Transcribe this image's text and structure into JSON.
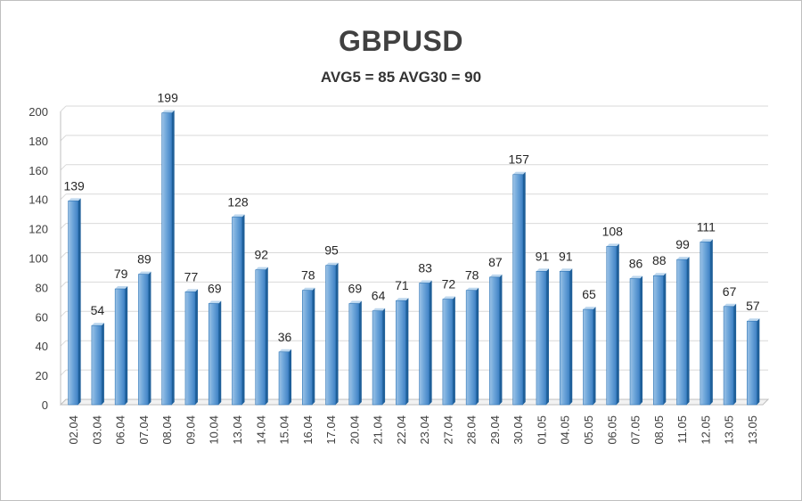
{
  "chart_data": {
    "type": "bar",
    "title": "GBPUSD",
    "subtitle": "AVG5 = 85 AVG30 = 90",
    "xlabel": "",
    "ylabel": "",
    "ylim": [
      0,
      200
    ],
    "yticks": [
      0,
      20,
      40,
      60,
      80,
      100,
      120,
      140,
      160,
      180,
      200
    ],
    "grid": true,
    "legend": "none",
    "categories": [
      "02.04",
      "03.04",
      "06.04",
      "07.04",
      "08.04",
      "09.04",
      "10.04",
      "13.04",
      "14.04",
      "15.04",
      "16.04",
      "17.04",
      "20.04",
      "21.04",
      "22.04",
      "23.04",
      "27.04",
      "28.04",
      "29.04",
      "30.04",
      "01.05",
      "04.05",
      "05.05",
      "06.05",
      "07.05",
      "08.05",
      "11.05",
      "12.05",
      "13.05",
      "13.05"
    ],
    "values": [
      139,
      54,
      79,
      89,
      199,
      77,
      69,
      128,
      92,
      36,
      78,
      95,
      69,
      64,
      71,
      83,
      72,
      78,
      87,
      157,
      91,
      91,
      65,
      108,
      86,
      88,
      99,
      111,
      67,
      57
    ],
    "colors": {
      "bar_light": "#9dc3e6",
      "bar_mid": "#5b9bd5",
      "bar_dark": "#2e75b6",
      "bar_side": "#1f5f99",
      "bar_top": "#bdd7ee",
      "grid": "#d9d9d9",
      "axis": "#bfbfbf"
    }
  }
}
